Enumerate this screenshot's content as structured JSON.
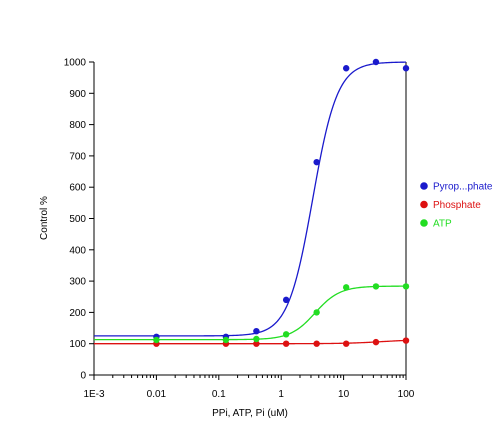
{
  "chart_data": {
    "type": "scatter",
    "title": "",
    "xlabel": "PPi, ATP, Pi (uM)",
    "ylabel": "Control %",
    "xscale": "log",
    "xlim": [
      0.001,
      100
    ],
    "ylim": [
      0,
      1000
    ],
    "xtick_values": [
      0.001,
      0.01,
      0.1,
      1,
      10,
      100
    ],
    "xtick_labels": [
      "1E-3",
      "0.01",
      "0.1",
      "1",
      "10",
      "100"
    ],
    "ytick_values": [
      0,
      100,
      200,
      300,
      400,
      500,
      600,
      700,
      800,
      900,
      1000
    ],
    "ytick_labels": [
      "0",
      "100",
      "200",
      "300",
      "400",
      "500",
      "600",
      "700",
      "800",
      "900",
      "1000"
    ],
    "legend_position": "right",
    "grid": false,
    "series": [
      {
        "name": "Pyrop...phate",
        "color": "#1a1acc",
        "x": [
          0.01,
          0.13,
          0.4,
          1.2,
          3.7,
          11,
          33,
          100
        ],
        "y": [
          122,
          122,
          140,
          240,
          680,
          980,
          1000,
          980
        ],
        "fit": {
          "bottom": 125,
          "top": 1000,
          "ec50": 3.2,
          "hill": 2.2
        }
      },
      {
        "name": "Phosphate",
        "color": "#dd1111",
        "x": [
          0.01,
          0.13,
          0.4,
          1.2,
          3.7,
          11,
          33,
          100
        ],
        "y": [
          100,
          100,
          100,
          100,
          100,
          100,
          105,
          110
        ],
        "fit": {
          "bottom": 100,
          "top": 113,
          "ec50": 40,
          "hill": 1.5
        }
      },
      {
        "name": "ATP",
        "color": "#22dd22",
        "x": [
          0.01,
          0.13,
          0.4,
          1.2,
          3.7,
          11,
          33,
          100
        ],
        "y": [
          112,
          112,
          115,
          130,
          200,
          280,
          283,
          283
        ],
        "fit": {
          "bottom": 113,
          "top": 284,
          "ec50": 3.5,
          "hill": 2.2
        }
      }
    ]
  }
}
